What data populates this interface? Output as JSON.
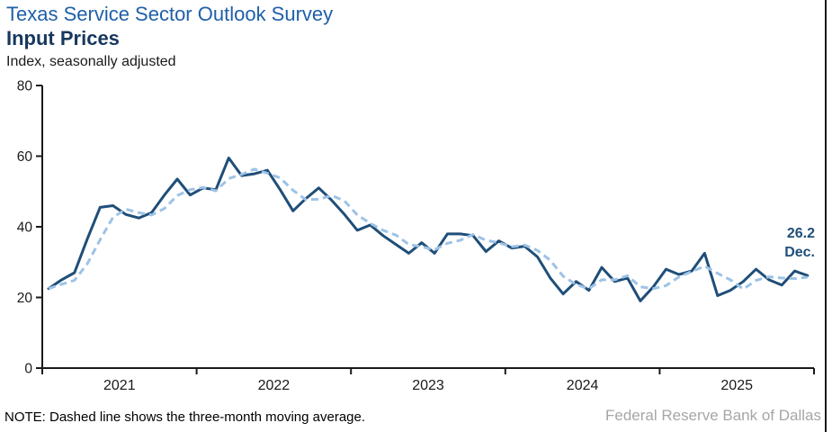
{
  "header": {
    "title": "Texas Service Sector Outlook Survey",
    "subtitle": "Input Prices",
    "unit_label": "Index, seasonally adjusted"
  },
  "chart_data": {
    "type": "line",
    "title": "Texas Service Sector Outlook Survey — Input Prices",
    "ylabel": "Index, seasonally adjusted",
    "ylim": [
      0,
      80
    ],
    "y_ticks": [
      0,
      20,
      40,
      60,
      80
    ],
    "grid": false,
    "legend_position": "none",
    "x_start": "2021-01",
    "x_end": "2025-12",
    "frequency": "monthly",
    "x_year_labels": [
      "2021",
      "2022",
      "2023",
      "2024",
      "2025"
    ],
    "series": [
      {
        "name": "Input prices index (monthly, seasonally adjusted)",
        "style": "solid",
        "color": "#1F4E79",
        "values": [
          22.5,
          25.0,
          27.0,
          36.5,
          45.5,
          46.0,
          43.5,
          42.5,
          44.0,
          49.0,
          53.5,
          49.0,
          51.0,
          50.5,
          59.5,
          54.5,
          55.0,
          56.0,
          50.5,
          44.5,
          48.0,
          51.0,
          47.5,
          43.5,
          39.0,
          40.5,
          37.5,
          35.0,
          32.5,
          35.5,
          32.5,
          38.0,
          38.0,
          37.5,
          33.0,
          36.0,
          34.0,
          34.5,
          31.5,
          25.5,
          21.0,
          24.5,
          22.0,
          28.5,
          24.5,
          25.5,
          19.0,
          23.0,
          28.0,
          26.5,
          27.5,
          32.5,
          20.5,
          22.0,
          24.5,
          28.0,
          25.0,
          23.5,
          27.5,
          26.2
        ]
      },
      {
        "name": "Three-month moving average",
        "style": "dashed",
        "color": "#9DC3E6",
        "derived_from": "3-month moving average of the monthly series"
      }
    ],
    "last_point": {
      "period": "2025-12",
      "value": 26.2
    }
  },
  "annotation": {
    "value": "26.2",
    "month": "Dec."
  },
  "footer": {
    "note": "NOTE: Dashed line shows the three-month moving average.",
    "attribution": "Federal Reserve Bank of Dallas"
  },
  "colors": {
    "title_blue": "#1F5FA8",
    "navy": "#17375E",
    "line_dark": "#1F4E79",
    "line_light": "#9DC3E6",
    "attribution_gray": "#A6A6A6",
    "axis": "#1A1A1A"
  }
}
